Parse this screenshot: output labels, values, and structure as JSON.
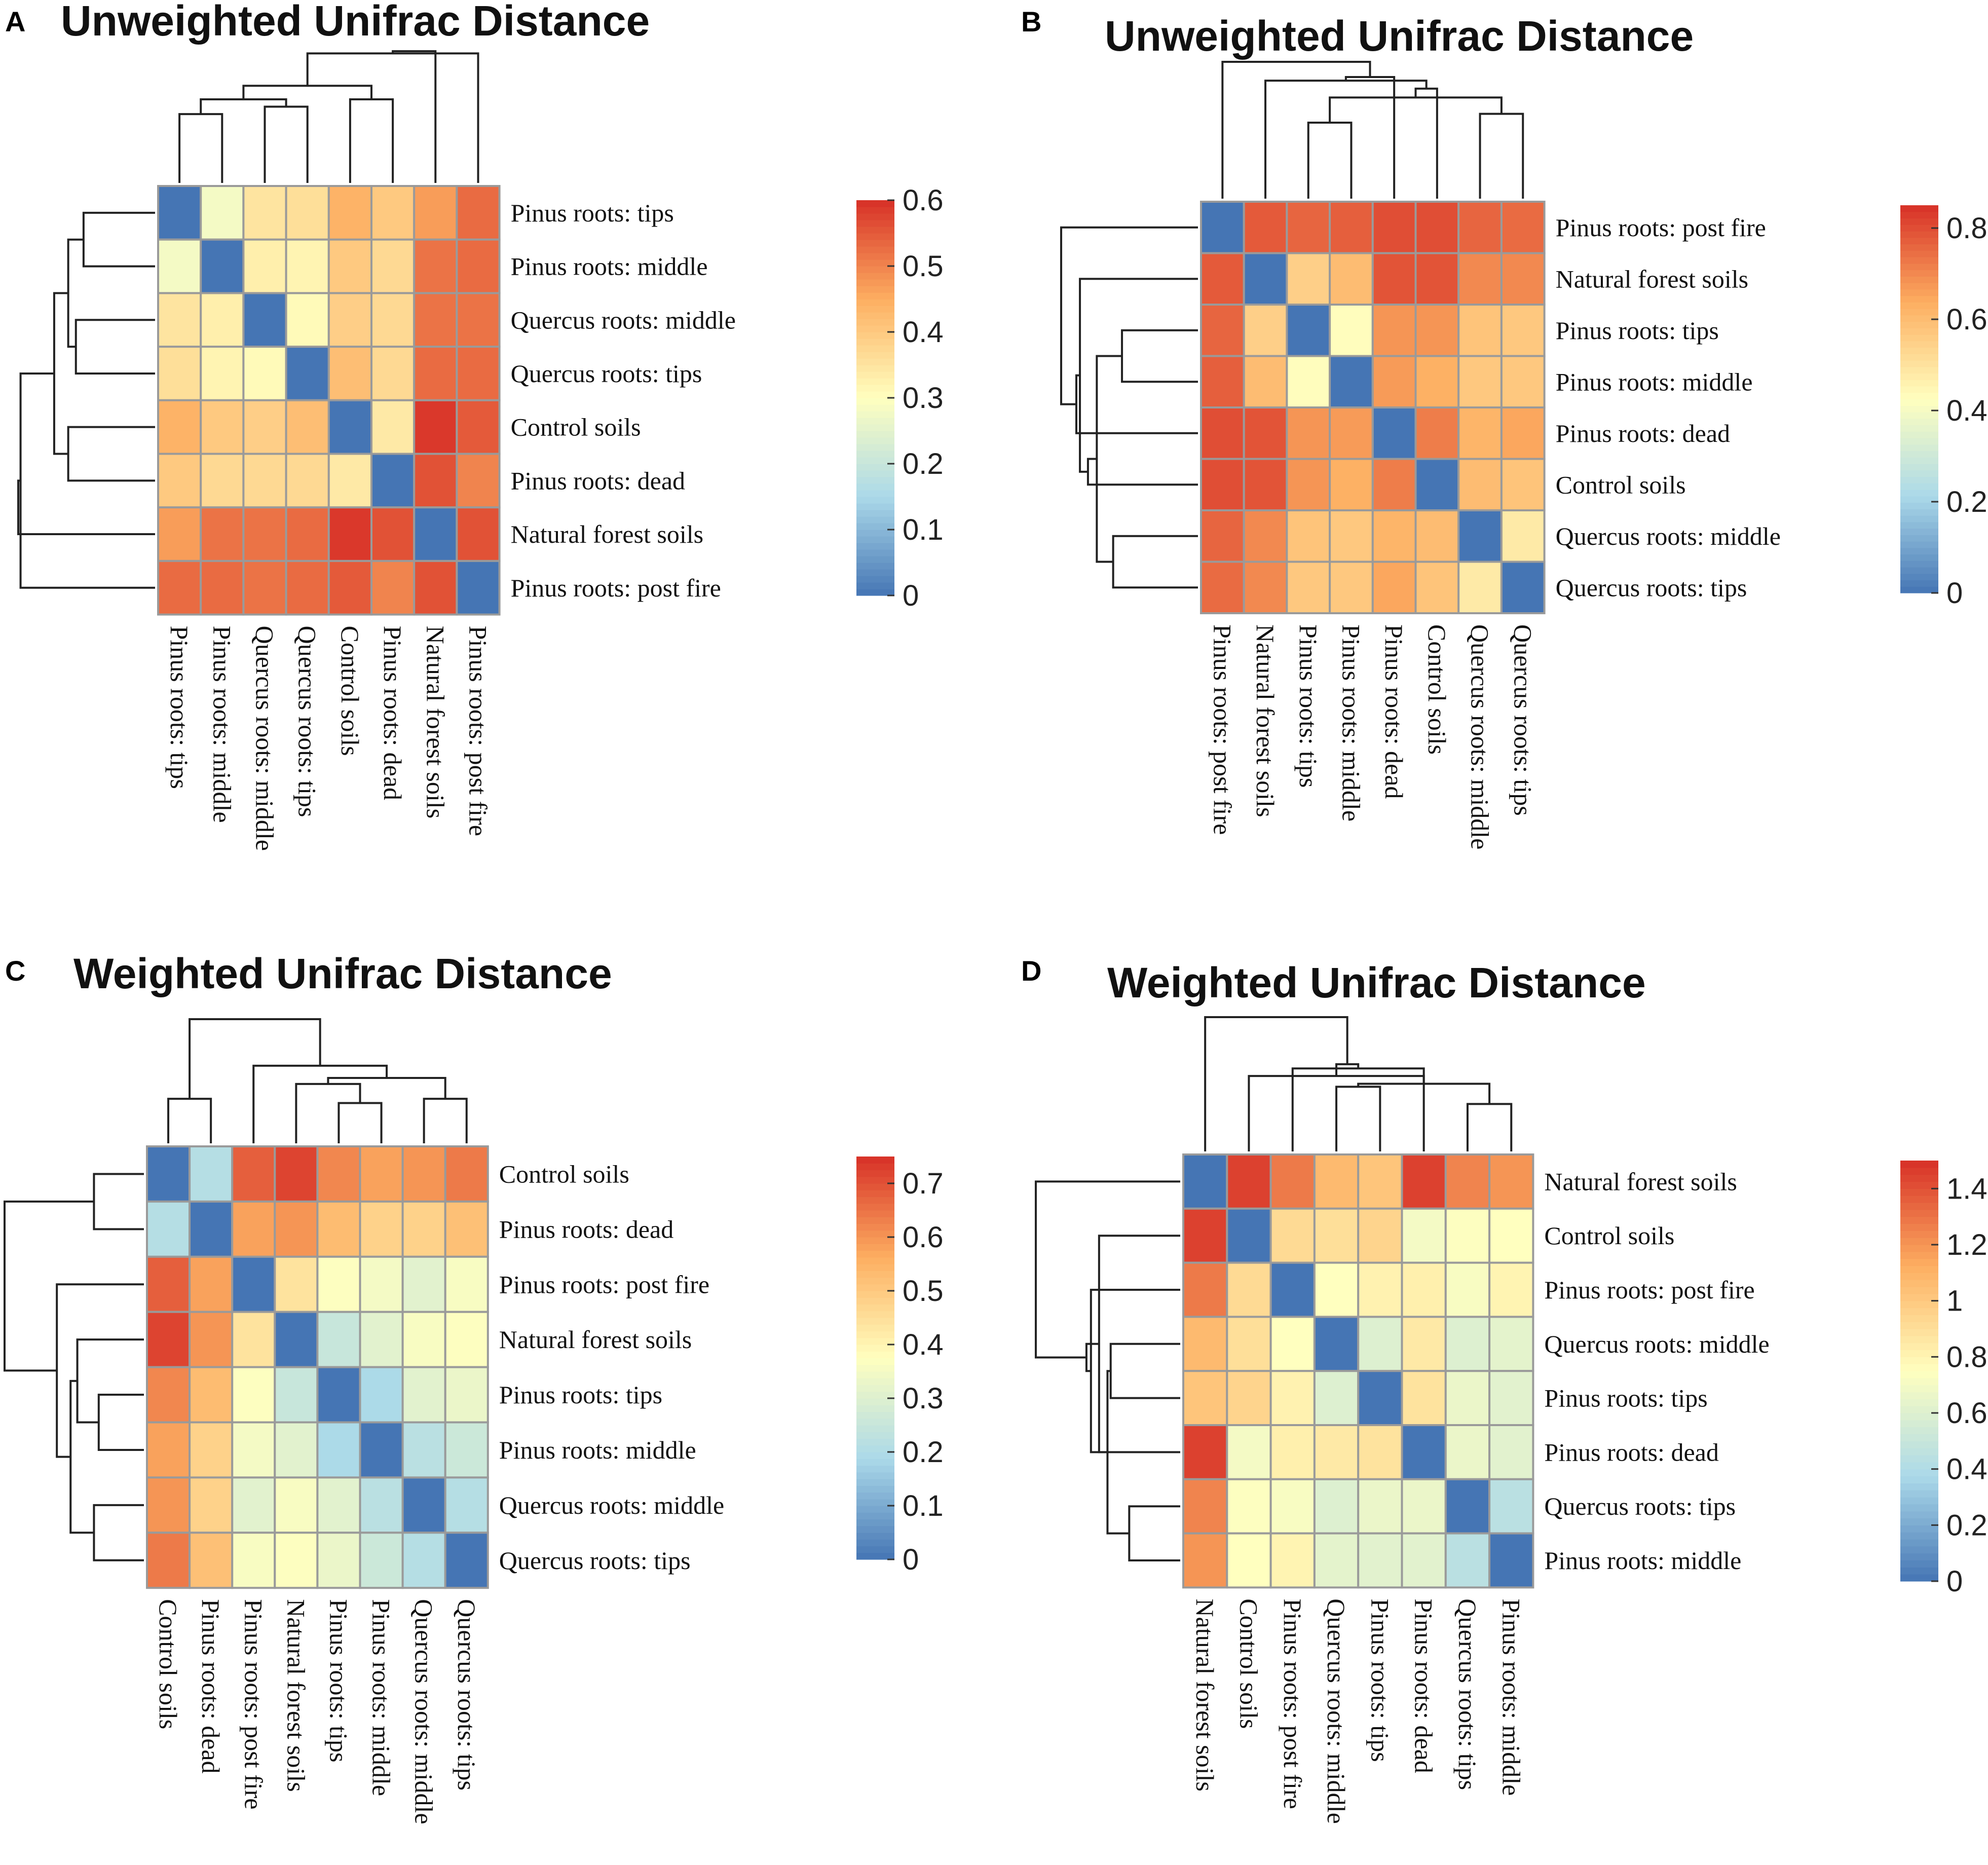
{
  "figure": {
    "name": "unifrac-distance-heatmaps"
  },
  "chart_data": [
    {
      "panel": "A",
      "type": "heatmap",
      "title": "Unweighted Unifrac Distance",
      "row_labels": [
        "Pinus roots: tips",
        "Pinus roots: middle",
        "Quercus roots: middle",
        "Quercus roots: tips",
        "Control soils",
        "Pinus roots: dead",
        "Natural forest soils",
        "Pinus roots: post fire"
      ],
      "col_labels": [
        "Pinus roots: tips",
        "Pinus roots: middle",
        "Quercus roots: middle",
        "Quercus roots: tips",
        "Control soils",
        "Pinus roots: dead",
        "Natural forest soils",
        "Pinus roots: post fire"
      ],
      "values": [
        [
          0,
          0.28,
          0.35,
          0.36,
          0.44,
          0.4,
          0.47,
          0.53
        ],
        [
          0.28,
          0,
          0.33,
          0.32,
          0.4,
          0.37,
          0.52,
          0.53
        ],
        [
          0.35,
          0.33,
          0,
          0.31,
          0.39,
          0.37,
          0.52,
          0.52
        ],
        [
          0.36,
          0.32,
          0.31,
          0,
          0.42,
          0.37,
          0.53,
          0.53
        ],
        [
          0.44,
          0.4,
          0.39,
          0.42,
          0,
          0.34,
          0.59,
          0.55
        ],
        [
          0.4,
          0.37,
          0.37,
          0.37,
          0.34,
          0,
          0.56,
          0.5
        ],
        [
          0.47,
          0.52,
          0.52,
          0.53,
          0.59,
          0.56,
          0,
          0.56
        ],
        [
          0.53,
          0.53,
          0.52,
          0.53,
          0.55,
          0.5,
          0.56,
          0
        ]
      ],
      "colorbar": {
        "min": 0,
        "max": 0.6,
        "ticks": [
          "0",
          "0.1",
          "0.2",
          "0.3",
          "0.4",
          "0.5",
          "0.6"
        ]
      }
    },
    {
      "panel": "B",
      "type": "heatmap",
      "title": "Unweighted Unifrac Distance",
      "row_labels": [
        "Pinus roots: post fire",
        "Natural forest soils",
        "Pinus roots: tips",
        "Pinus roots: middle",
        "Pinus roots: dead",
        "Control soils",
        "Quercus roots: middle",
        "Quercus roots: tips"
      ],
      "col_labels": [
        "Pinus roots: post fire",
        "Natural forest soils",
        "Pinus roots: tips",
        "Pinus roots: middle",
        "Pinus roots: dead",
        "Control soils",
        "Quercus roots: middle",
        "Quercus roots: tips"
      ],
      "values": [
        [
          0,
          0.78,
          0.76,
          0.77,
          0.8,
          0.8,
          0.76,
          0.75
        ],
        [
          0.78,
          0,
          0.55,
          0.6,
          0.79,
          0.79,
          0.7,
          0.7
        ],
        [
          0.76,
          0.55,
          0,
          0.43,
          0.68,
          0.68,
          0.58,
          0.57
        ],
        [
          0.77,
          0.6,
          0.43,
          0,
          0.67,
          0.63,
          0.57,
          0.57
        ],
        [
          0.8,
          0.79,
          0.68,
          0.67,
          0,
          0.72,
          0.62,
          0.65
        ],
        [
          0.8,
          0.79,
          0.68,
          0.63,
          0.72,
          0,
          0.6,
          0.58
        ],
        [
          0.76,
          0.7,
          0.58,
          0.57,
          0.62,
          0.6,
          0,
          0.48
        ],
        [
          0.75,
          0.7,
          0.57,
          0.57,
          0.65,
          0.58,
          0.48,
          0
        ]
      ],
      "colorbar": {
        "min": 0,
        "max": 0.85,
        "ticks": [
          "0",
          "0.2",
          "0.4",
          "0.6",
          "0.8"
        ]
      }
    },
    {
      "panel": "C",
      "type": "heatmap",
      "title": "Weighted Unifrac Distance",
      "row_labels": [
        "Control soils",
        "Pinus roots: dead",
        "Pinus roots: post fire",
        "Natural forest soils",
        "Pinus roots: tips",
        "Pinus roots: middle",
        "Quercus roots: middle",
        "Quercus roots: tips"
      ],
      "col_labels": [
        "Control soils",
        "Pinus roots: dead",
        "Pinus roots: post fire",
        "Natural forest soils",
        "Pinus roots: tips",
        "Pinus roots: middle",
        "Quercus roots: middle",
        "Quercus roots: tips"
      ],
      "values": [
        [
          0,
          0.21,
          0.68,
          0.72,
          0.62,
          0.58,
          0.6,
          0.64
        ],
        [
          0.21,
          0,
          0.58,
          0.6,
          0.53,
          0.48,
          0.48,
          0.52
        ],
        [
          0.68,
          0.58,
          0,
          0.44,
          0.37,
          0.35,
          0.31,
          0.36
        ],
        [
          0.72,
          0.6,
          0.44,
          0,
          0.25,
          0.31,
          0.36,
          0.37
        ],
        [
          0.62,
          0.53,
          0.37,
          0.25,
          0,
          0.19,
          0.31,
          0.33
        ],
        [
          0.58,
          0.48,
          0.35,
          0.31,
          0.19,
          0,
          0.22,
          0.26
        ],
        [
          0.6,
          0.48,
          0.31,
          0.36,
          0.31,
          0.22,
          0,
          0.21
        ],
        [
          0.64,
          0.52,
          0.36,
          0.37,
          0.33,
          0.26,
          0.21,
          0
        ]
      ],
      "colorbar": {
        "min": 0,
        "max": 0.75,
        "ticks": [
          "0",
          "0.1",
          "0.2",
          "0.3",
          "0.4",
          "0.5",
          "0.6",
          "0.7"
        ]
      }
    },
    {
      "panel": "D",
      "type": "heatmap",
      "title": "Weighted Unifrac Distance",
      "row_labels": [
        "Natural forest soils",
        "Control soils",
        "Pinus roots: post fire",
        "Quercus roots: middle",
        "Pinus roots: tips",
        "Pinus roots: dead",
        "Quercus roots: tips",
        "Pinus roots: middle"
      ],
      "col_labels": [
        "Natural forest soils",
        "Control soils",
        "Pinus roots: post fire",
        "Quercus roots: middle",
        "Pinus roots: tips",
        "Pinus roots: dead",
        "Quercus roots: tips",
        "Pinus roots: middle"
      ],
      "values": [
        [
          0,
          1.45,
          1.28,
          1.07,
          1.02,
          1.45,
          1.25,
          1.2
        ],
        [
          1.45,
          0,
          0.92,
          0.9,
          0.95,
          0.7,
          0.74,
          0.75
        ],
        [
          1.28,
          0.92,
          0,
          0.75,
          0.81,
          0.82,
          0.72,
          0.8
        ],
        [
          1.07,
          0.9,
          0.75,
          0,
          0.6,
          0.85,
          0.6,
          0.63
        ],
        [
          1.02,
          0.95,
          0.81,
          0.6,
          0,
          0.88,
          0.66,
          0.62
        ],
        [
          1.45,
          0.7,
          0.82,
          0.85,
          0.88,
          0,
          0.66,
          0.62
        ],
        [
          1.25,
          0.74,
          0.72,
          0.6,
          0.66,
          0.66,
          0,
          0.44
        ],
        [
          1.2,
          0.75,
          0.8,
          0.63,
          0.62,
          0.62,
          0.44,
          0
        ]
      ],
      "colorbar": {
        "min": 0,
        "max": 1.5,
        "ticks": [
          "0",
          "0.2",
          "0.4",
          "0.6",
          "0.8",
          "1",
          "1.2",
          "1.4"
        ]
      }
    }
  ]
}
